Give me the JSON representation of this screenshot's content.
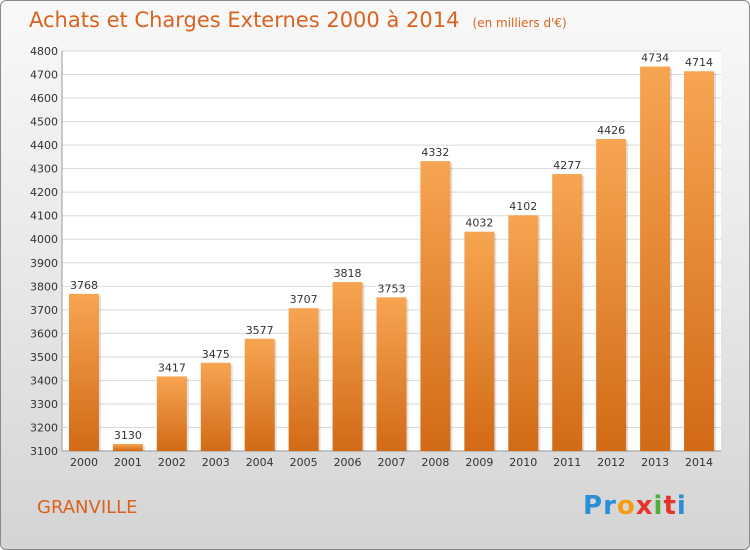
{
  "header": {
    "title": "Achats et Charges Externes 2000 à 2014",
    "subtitle": "(en milliers d'€)"
  },
  "footer": {
    "city": "GRANVILLE",
    "logo_text": "Proxiti",
    "logo_colors": [
      "#2a8fd6",
      "#2a8fd6",
      "#f39c12",
      "#e4342b",
      "#4fae3b",
      "#e4342b",
      "#2a8fd6"
    ]
  },
  "colors": {
    "bar_light": "#f7a552",
    "bar_dark": "#d26a16",
    "grid": "#d9d9d9",
    "axis_text": "#333333",
    "title": "#d9631e"
  },
  "chart_data": {
    "type": "bar",
    "title": "Achats et Charges Externes 2000 à 2014",
    "subtitle": "(en milliers d'€)",
    "categories": [
      "2000",
      "2001",
      "2002",
      "2003",
      "2004",
      "2005",
      "2006",
      "2007",
      "2008",
      "2009",
      "2010",
      "2011",
      "2012",
      "2013",
      "2014"
    ],
    "values": [
      3768,
      3130,
      3417,
      3475,
      3577,
      3707,
      3818,
      3753,
      4332,
      4032,
      4102,
      4277,
      4426,
      4734,
      4714
    ],
    "ylim": [
      3100,
      4800
    ],
    "yticks": [
      3100,
      3200,
      3300,
      3400,
      3500,
      3600,
      3700,
      3800,
      3900,
      4000,
      4100,
      4200,
      4300,
      4400,
      4500,
      4600,
      4700,
      4800
    ],
    "grid": true,
    "xlabel": "",
    "ylabel": ""
  }
}
